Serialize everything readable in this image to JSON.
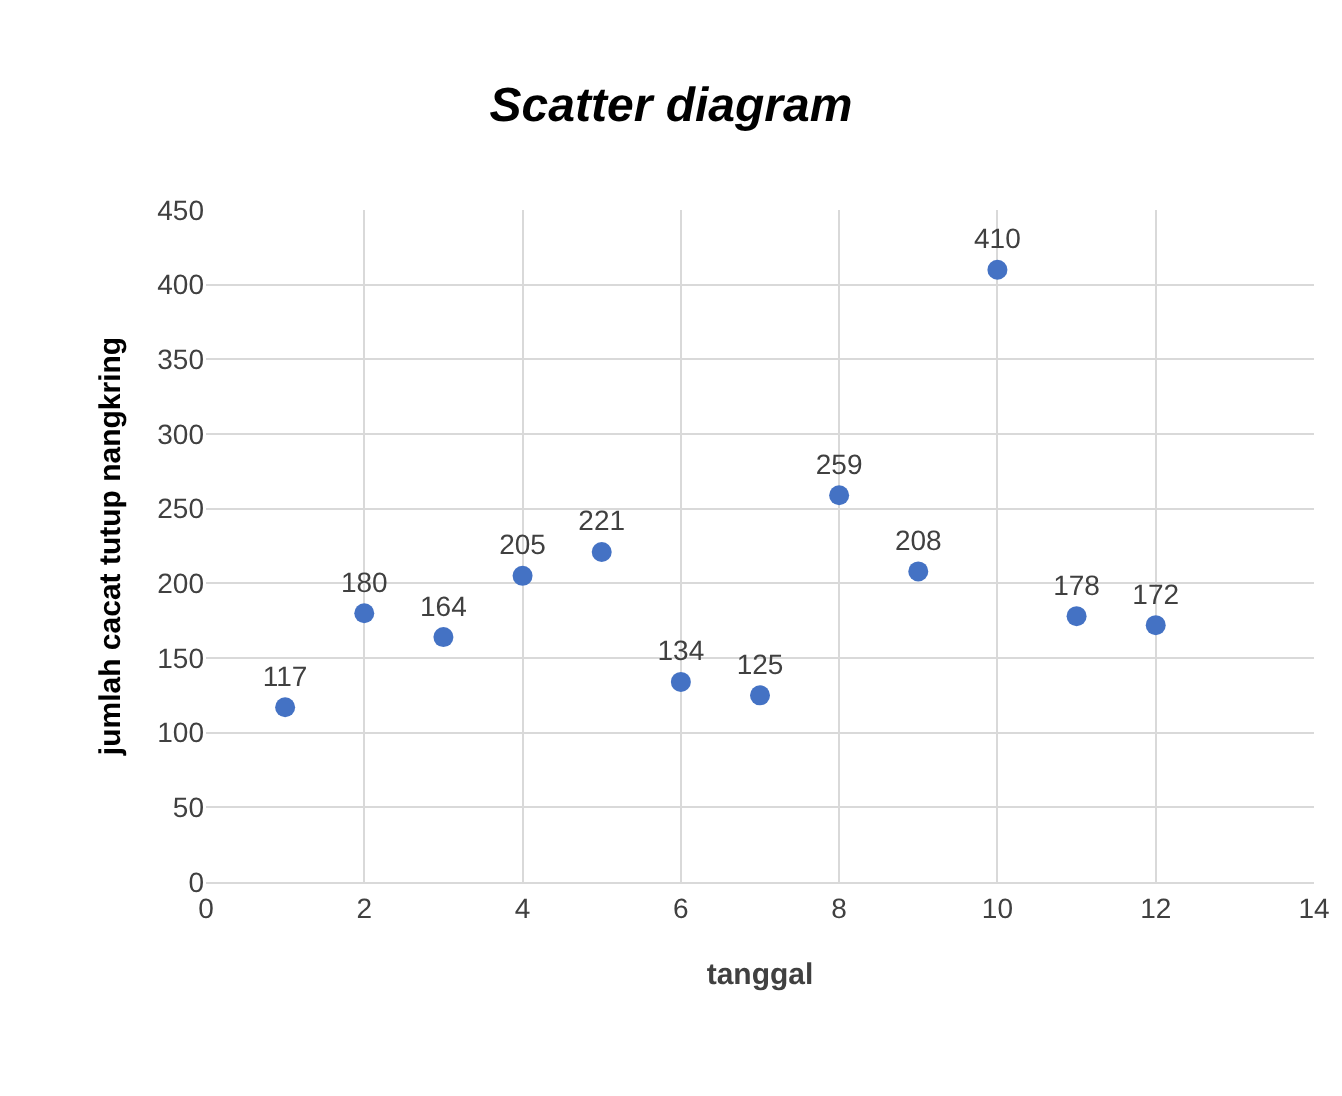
{
  "chart_data": {
    "type": "scatter",
    "title": "Scatter diagram",
    "xlabel": "tanggal",
    "ylabel": "jumlah cacat tutup nangkring",
    "x": [
      1,
      2,
      3,
      4,
      5,
      6,
      7,
      8,
      9,
      10,
      11,
      12
    ],
    "values": [
      117,
      180,
      164,
      205,
      221,
      134,
      125,
      259,
      208,
      410,
      178,
      172
    ],
    "color": "#4472c4",
    "data_labels": true,
    "marker": "circle",
    "xlim": [
      0,
      14
    ],
    "xticks": [
      0,
      2,
      4,
      6,
      8,
      10,
      12,
      14
    ],
    "ylim": [
      0,
      450
    ],
    "yticks": [
      0,
      50,
      100,
      150,
      200,
      250,
      300,
      350,
      400,
      450
    ],
    "grid": true,
    "legend": false
  }
}
